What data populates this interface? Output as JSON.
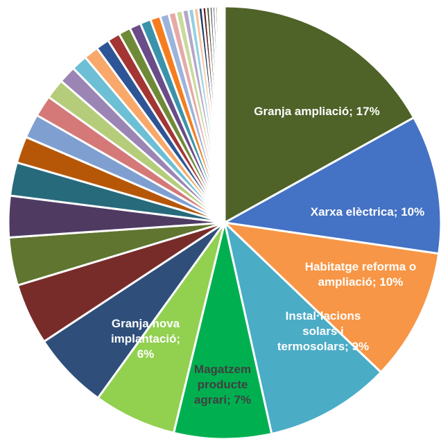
{
  "chart_data": {
    "type": "pie",
    "title": "",
    "slices": [
      {
        "label": "Granja ampliació; 17%",
        "value": 17.0,
        "color": "#4f6228",
        "label_color": "#ffffff"
      },
      {
        "label": "Xarxa elèctrica; 10%",
        "value": 10.4,
        "color": "#4472c4",
        "label_color": "#ffffff"
      },
      {
        "label": "Habitatge reforma o ampliació; 10%",
        "value": 9.9,
        "color": "#f79646",
        "label_color": "#ffffff"
      },
      {
        "label": "Instal·lacions solars i termosolars; 9%",
        "value": 9.4,
        "color": "#4bacc6",
        "label_color": "#ffffff"
      },
      {
        "label": "Magatzem producte agrari; 7%",
        "value": 7.3,
        "color": "#00b050",
        "label_color": "#404040"
      },
      {
        "label": "",
        "value": 6.2,
        "color": "#92d050",
        "label_color": "#ffffff"
      },
      {
        "label": "Granja nova implantació; 6%",
        "value": 5.8,
        "color": "#2f4f7a",
        "label_color": "#ffffff"
      },
      {
        "label": "",
        "value": 4.6,
        "color": "#772c2a",
        "label_color": "#ffffff"
      },
      {
        "label": "",
        "value": 3.6,
        "color": "#5f7530",
        "label_color": "#ffffff"
      },
      {
        "label": "",
        "value": 3.1,
        "color": "#4f3b62",
        "label_color": "#ffffff"
      },
      {
        "label": "",
        "value": 2.5,
        "color": "#276a7c",
        "label_color": "#ffffff"
      },
      {
        "label": "",
        "value": 2.0,
        "color": "#b65708",
        "label_color": "#ffffff"
      },
      {
        "label": "",
        "value": 1.8,
        "color": "#7f9fd0",
        "label_color": "#ffffff"
      },
      {
        "label": "",
        "value": 1.6,
        "color": "#d47978",
        "label_color": "#ffffff"
      },
      {
        "label": "",
        "value": 1.5,
        "color": "#b5cc7a",
        "label_color": "#ffffff"
      },
      {
        "label": "",
        "value": 1.3,
        "color": "#9a85b4",
        "label_color": "#ffffff"
      },
      {
        "label": "",
        "value": 1.2,
        "color": "#6cbfd5",
        "label_color": "#ffffff"
      },
      {
        "label": "",
        "value": 1.1,
        "color": "#f8a86a",
        "label_color": "#ffffff"
      },
      {
        "label": "",
        "value": 1.0,
        "color": "#2e5596",
        "label_color": "#ffffff"
      },
      {
        "label": "",
        "value": 0.95,
        "color": "#a33634",
        "label_color": "#ffffff"
      },
      {
        "label": "",
        "value": 0.9,
        "color": "#6f8a37",
        "label_color": "#ffffff"
      },
      {
        "label": "",
        "value": 0.85,
        "color": "#6a4c89",
        "label_color": "#ffffff"
      },
      {
        "label": "",
        "value": 0.8,
        "color": "#3a93ab",
        "label_color": "#ffffff"
      },
      {
        "label": "",
        "value": 0.75,
        "color": "#f57d1f",
        "label_color": "#ffffff"
      },
      {
        "label": "",
        "value": 0.65,
        "color": "#9cb3db",
        "label_color": "#ffffff"
      },
      {
        "label": "",
        "value": 0.55,
        "color": "#e6a9a8",
        "label_color": "#ffffff"
      },
      {
        "label": "",
        "value": 0.5,
        "color": "#c9da9b",
        "label_color": "#ffffff"
      },
      {
        "label": "",
        "value": 0.45,
        "color": "#b5a6c9",
        "label_color": "#ffffff"
      },
      {
        "label": "",
        "value": 0.4,
        "color": "#93d0e0",
        "label_color": "#ffffff"
      },
      {
        "label": "",
        "value": 0.35,
        "color": "#fac49d",
        "label_color": "#ffffff"
      },
      {
        "label": "",
        "value": 0.3,
        "color": "#1f3864",
        "label_color": "#ffffff"
      },
      {
        "label": "",
        "value": 0.28,
        "color": "#632523",
        "label_color": "#ffffff"
      },
      {
        "label": "",
        "value": 0.25,
        "color": "#3e4d1f",
        "label_color": "#ffffff"
      },
      {
        "label": "",
        "value": 0.22,
        "color": "#3f2f50",
        "label_color": "#ffffff"
      },
      {
        "label": "",
        "value": 0.2,
        "color": "#1f5564",
        "label_color": "#ffffff"
      },
      {
        "label": "",
        "value": 0.18,
        "color": "#984807",
        "label_color": "#ffffff"
      },
      {
        "label": "",
        "value": 0.16,
        "color": "#5a7bb8",
        "label_color": "#ffffff"
      },
      {
        "label": "",
        "value": 0.14,
        "color": "#c0504d",
        "label_color": "#ffffff"
      },
      {
        "label": "",
        "value": 0.12,
        "color": "#9bbb59",
        "label_color": "#ffffff"
      },
      {
        "label": "",
        "value": 0.1,
        "color": "#8064a2",
        "label_color": "#ffffff"
      }
    ]
  }
}
